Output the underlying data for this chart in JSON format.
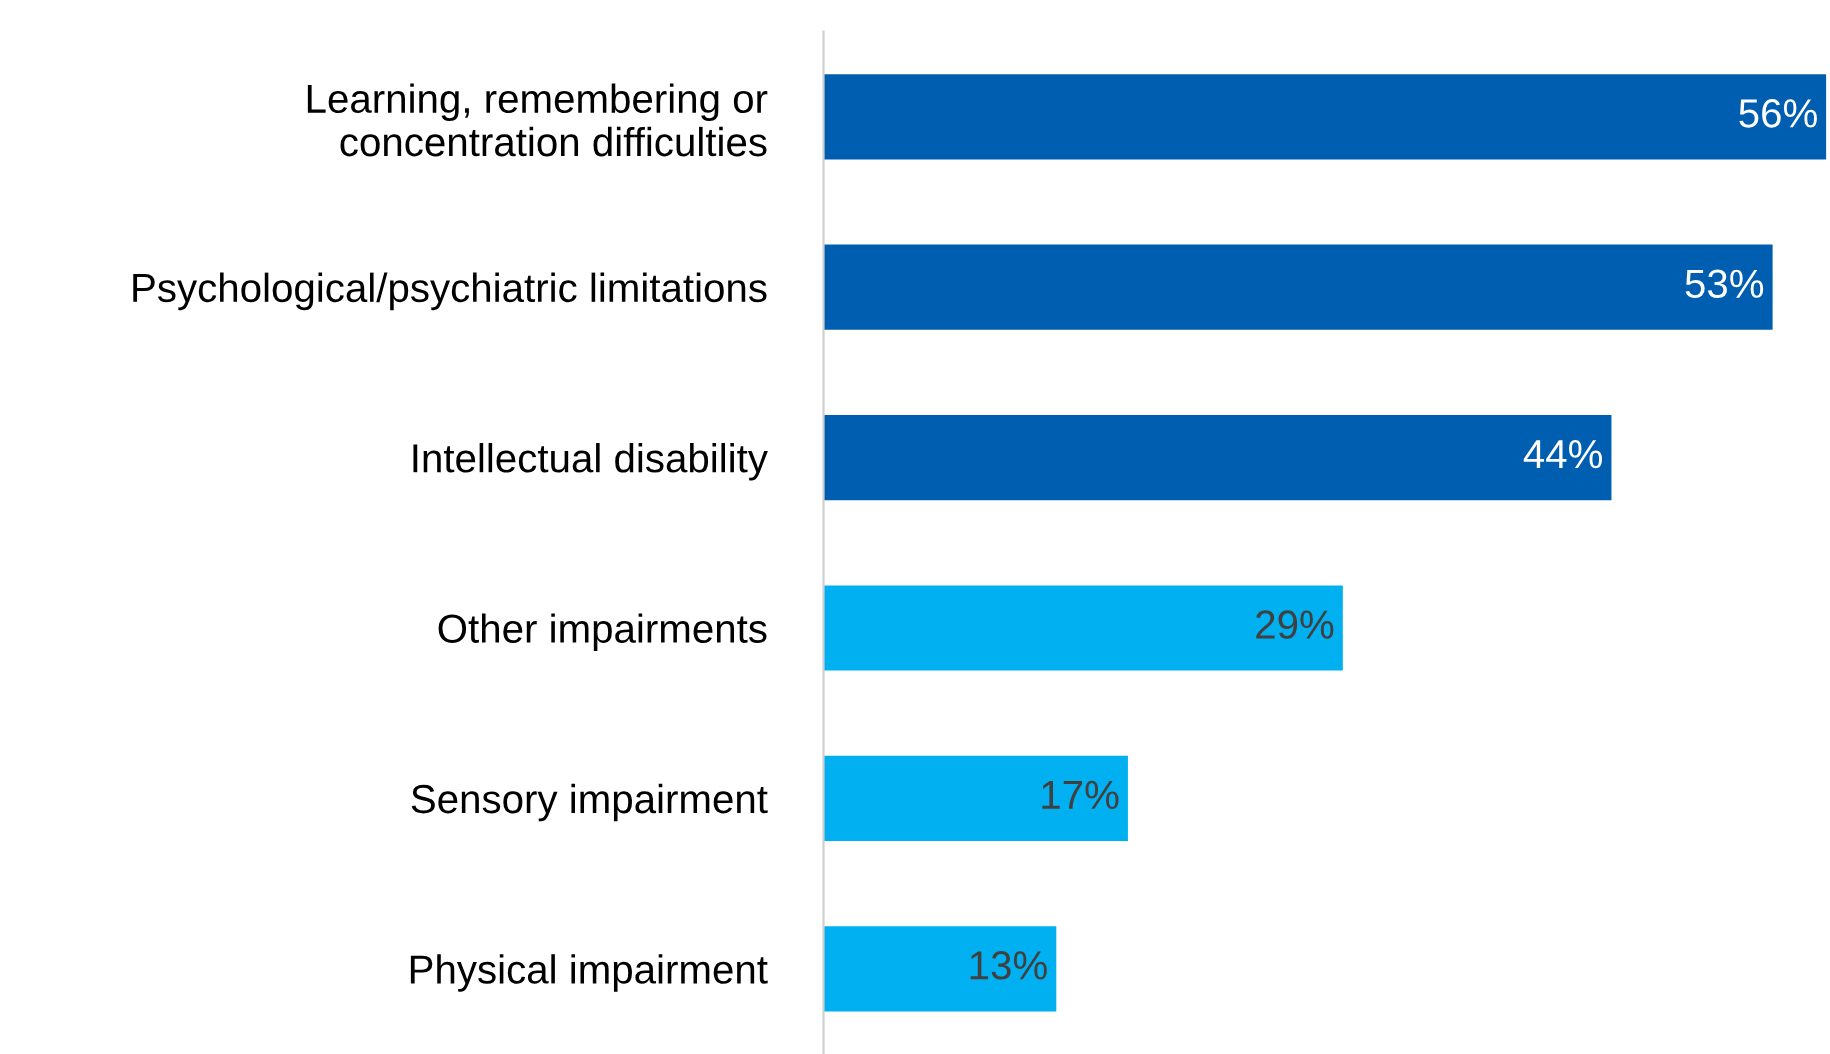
{
  "chart_data": {
    "type": "bar",
    "orientation": "horizontal",
    "categories": [
      "Learning, remembering or\nconcentration difficulties",
      "Psychological/psychiatric limitations",
      "Intellectual disability",
      "Other impairments",
      "Sensory impairment",
      "Physical impairment"
    ],
    "values": [
      56,
      53,
      44,
      29,
      17,
      13
    ],
    "colors": [
      "#005eb0",
      "#005eb0",
      "#005eb0",
      "#00b0f0",
      "#00b0f0",
      "#00b0f0"
    ],
    "value_labels": [
      "56%",
      "53%",
      "44%",
      "29%",
      "17%",
      "13%"
    ],
    "grid": false,
    "legend": false
  }
}
